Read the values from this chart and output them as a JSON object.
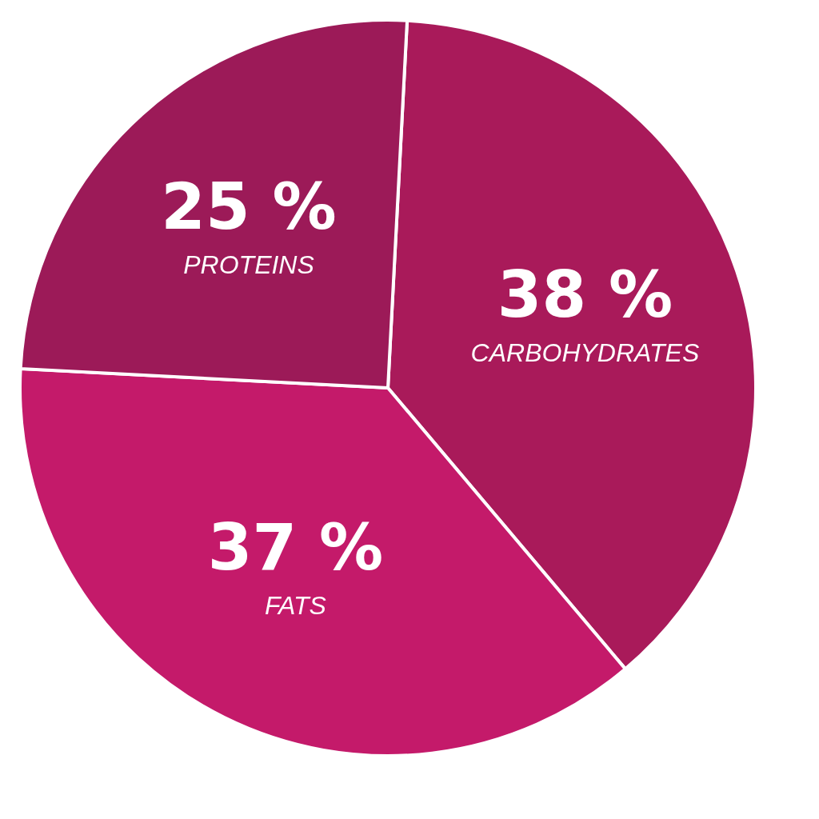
{
  "chart_data": {
    "type": "pie",
    "categories": [
      "CARBOHYDRATES",
      "FATS",
      "PROTEINS"
    ],
    "values": [
      38,
      37,
      25
    ],
    "value_labels": [
      "38 %",
      "37 %",
      "25 %"
    ],
    "colors": [
      "#a91a5a",
      "#c41a6a",
      "#9c1a58"
    ],
    "legend": false
  }
}
